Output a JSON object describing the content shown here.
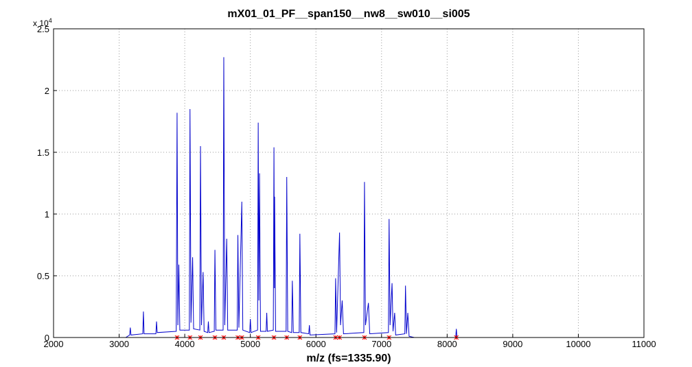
{
  "chart_data": {
    "type": "line",
    "title": "mX01_01_PF__span150__nw8__sw010__si005",
    "x_label": "m/z (fs=1335.90)",
    "y_multiplier": {
      "base": "x 10",
      "exponent": "4"
    },
    "xlim": [
      2000,
      11000
    ],
    "xticks": [
      2000,
      3000,
      4000,
      5000,
      6000,
      7000,
      8000,
      9000,
      10000,
      11000
    ],
    "ylim": [
      0,
      2.5
    ],
    "yticks": [
      0,
      0.5,
      1,
      1.5,
      2,
      2.5
    ],
    "grid": true,
    "series": [
      {
        "color": "#0000cc",
        "x": [
          3100,
          3160,
          3170,
          3180,
          3360,
          3370,
          3380,
          3560,
          3570,
          3580,
          3870,
          3883,
          3895,
          3910,
          3925,
          4070,
          4080,
          4095,
          4120,
          4135,
          4230,
          4240,
          4255,
          4280,
          4295,
          4350,
          4360,
          4370,
          4450,
          4460,
          4475,
          4585,
          4595,
          4610,
          4640,
          4655,
          4800,
          4810,
          4825,
          4870,
          4885,
          4990,
          5000,
          5010,
          5110,
          5120,
          5130,
          5140,
          5155,
          5240,
          5250,
          5260,
          5350,
          5360,
          5367,
          5370,
          5385,
          5545,
          5555,
          5570,
          5630,
          5640,
          5655,
          5745,
          5755,
          5770,
          5890,
          5900,
          5910,
          6290,
          6300,
          6315,
          6360,
          6375,
          6400,
          6420,
          6730,
          6740,
          6755,
          6800,
          6820,
          7105,
          7115,
          7130,
          7160,
          7175,
          7200,
          7215,
          7355,
          7365,
          7380,
          7400,
          7420,
          7500,
          8130,
          8140,
          8150,
          9920
        ],
        "values": [
          0,
          0.02,
          0.08,
          0.02,
          0.03,
          0.21,
          0.03,
          0.03,
          0.13,
          0.04,
          0.05,
          1.82,
          0.1,
          0.59,
          0.06,
          0.06,
          1.85,
          0.12,
          0.65,
          0.07,
          0.06,
          1.55,
          0.1,
          0.53,
          0.05,
          0.04,
          0.13,
          0.04,
          0.05,
          0.71,
          0.06,
          0.06,
          2.27,
          0.1,
          0.8,
          0.06,
          0.06,
          0.83,
          0.08,
          1.1,
          0.06,
          0.04,
          0.15,
          0.04,
          0.06,
          1.74,
          0.3,
          1.33,
          0.05,
          0.05,
          0.2,
          0.05,
          0.06,
          1.54,
          0.4,
          1.14,
          0.05,
          0.05,
          1.3,
          0.05,
          0.04,
          0.46,
          0.04,
          0.04,
          0.84,
          0.04,
          0.03,
          0.1,
          0.02,
          0.03,
          0.48,
          0.04,
          0.85,
          0.1,
          0.3,
          0.03,
          0.04,
          1.26,
          0.1,
          0.28,
          0.03,
          0.04,
          0.96,
          0.1,
          0.44,
          0.05,
          0.2,
          0.02,
          0.03,
          0.42,
          0.03,
          0.2,
          0.01,
          0,
          0,
          0.07,
          0,
          0
        ]
      }
    ],
    "peak_markers": {
      "color": "#ff0000",
      "x": [
        3883,
        4080,
        4240,
        4460,
        4595,
        4810,
        4870,
        5120,
        5360,
        5555,
        5755,
        6300,
        6360,
        6740,
        7115,
        8140
      ],
      "values": [
        0,
        0,
        0,
        0,
        0,
        0,
        0,
        0,
        0,
        0,
        0,
        0,
        0,
        0,
        0,
        0
      ]
    }
  }
}
